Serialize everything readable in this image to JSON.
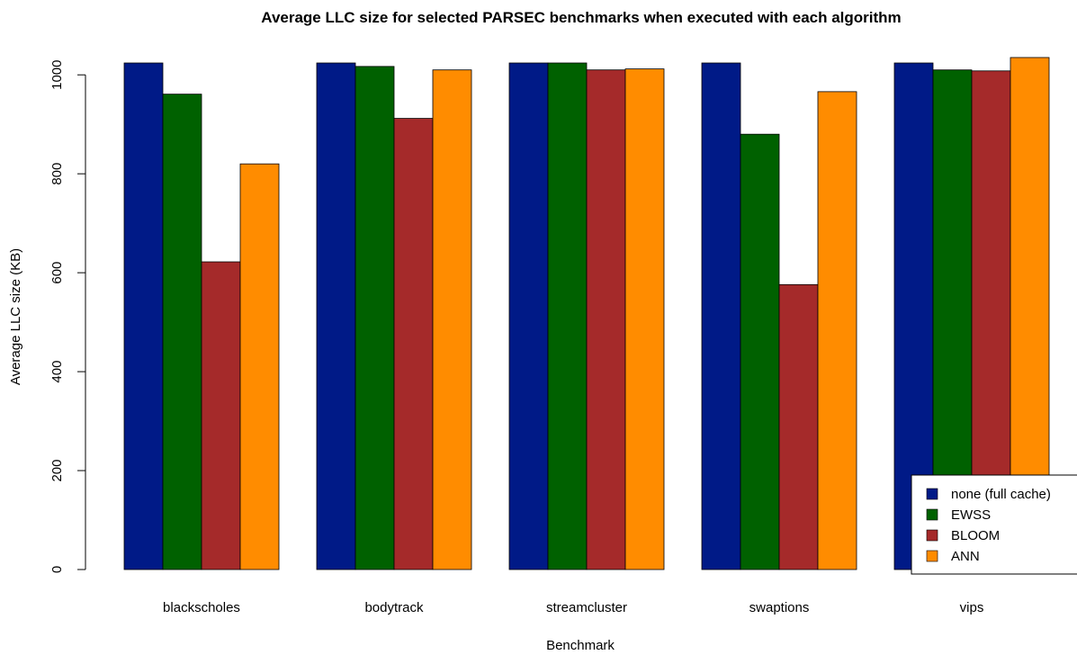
{
  "chart_data": {
    "type": "bar",
    "title": "Average LLC size for selected PARSEC benchmarks when executed with each algorithm",
    "xlabel": "Benchmark",
    "ylabel": "Average LLC size (KB)",
    "ylim": [
      0,
      1050
    ],
    "yticks": [
      0,
      200,
      400,
      600,
      800,
      1000
    ],
    "grid": false,
    "legend_position": "bottom-right",
    "categories": [
      "blackscholes",
      "bodytrack",
      "streamcluster",
      "swaptions",
      "vips"
    ],
    "series": [
      {
        "name": "none (full cache)",
        "color": "#001a87",
        "values": [
          1024,
          1024,
          1024,
          1024,
          1024
        ]
      },
      {
        "name": "EWSS",
        "color": "#006100",
        "values": [
          961,
          1017,
          1024,
          880,
          1010
        ]
      },
      {
        "name": "BLOOM",
        "color": "#a52a2a",
        "values": [
          622,
          912,
          1010,
          576,
          1008
        ]
      },
      {
        "name": "ANN",
        "color": "#ff8c00",
        "values": [
          820,
          1010,
          1012,
          966,
          1035
        ]
      }
    ]
  }
}
